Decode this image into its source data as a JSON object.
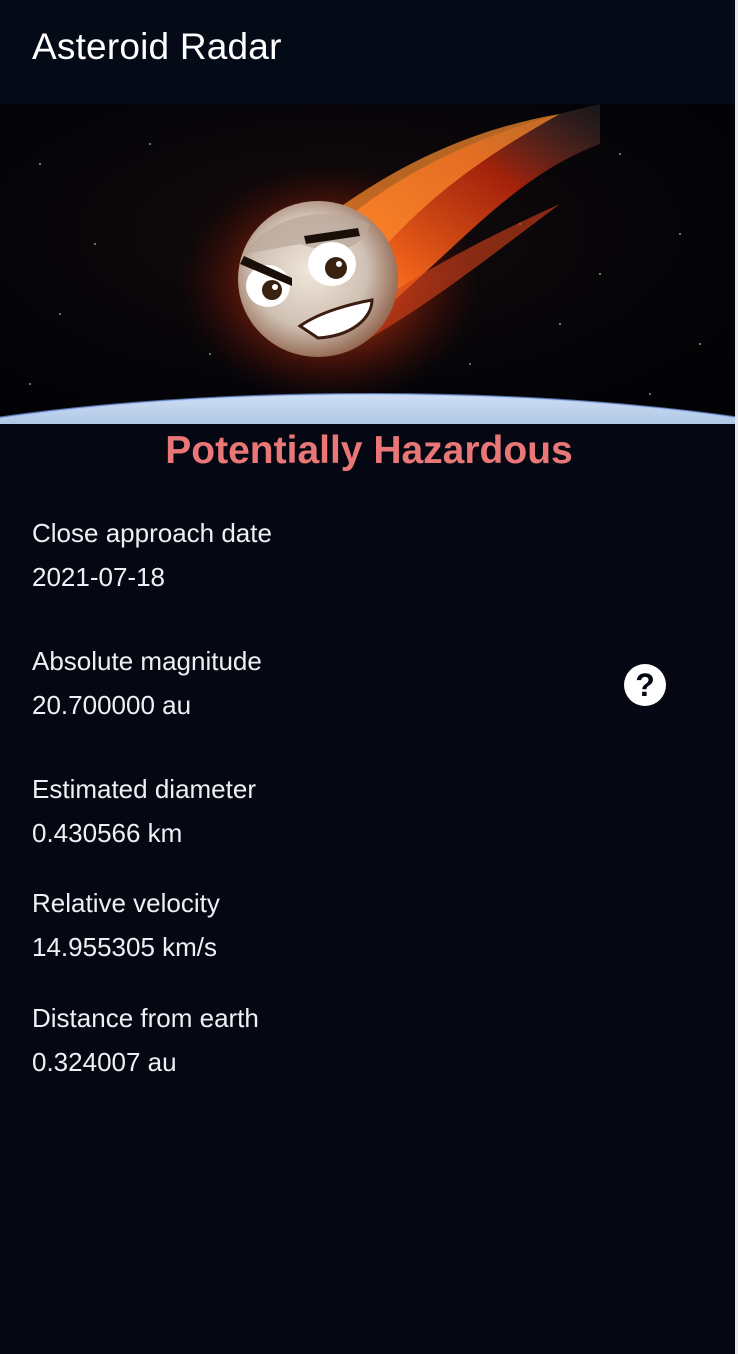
{
  "app_bar": {
    "title": "Asteroid Radar"
  },
  "hero_image": {
    "subject": "angry cartoon asteroid on fire approaching earth"
  },
  "status": {
    "label": "Potentially Hazardous",
    "color": "#ea7777"
  },
  "details": [
    {
      "label": "Close approach date",
      "value": "2021-07-18"
    },
    {
      "label": "Absolute magnitude",
      "value": "20.700000 au"
    },
    {
      "label": "Estimated diameter",
      "value": "0.430566 km"
    },
    {
      "label": "Relative velocity",
      "value": "14.955305 km/s"
    },
    {
      "label": "Distance from earth",
      "value": "0.324007 au"
    }
  ],
  "help_icon": {
    "glyph": "?",
    "icon": "help-circle-icon"
  },
  "colors": {
    "background": "#050813",
    "text": "#eef0f4",
    "hazard": "#ea7777"
  }
}
